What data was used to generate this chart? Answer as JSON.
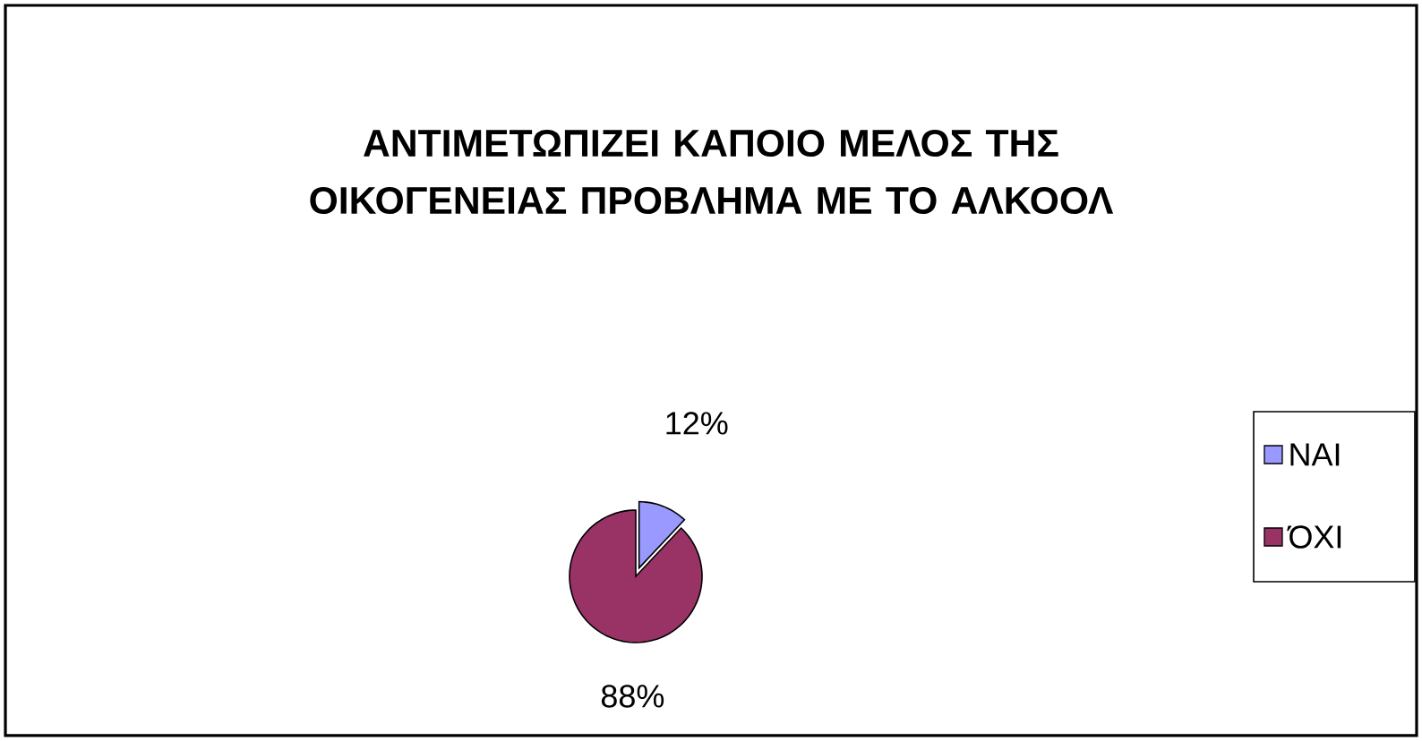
{
  "chart_data": {
    "type": "pie",
    "title": "ΑΝΤΙΜΕΤΩΠΙΖΕΙ ΚΑΠΟΙΟ ΜΕΛΟΣ ΤΗΣ ΟΙΚΟΓΕΝΕΙΑΣ ΠΡΟΒΛΗΜΑ ΜΕ ΤΟ ΑΛΚΟΟΛ",
    "categories": [
      "ΝΑΙ",
      "ΌΧΙ"
    ],
    "values": [
      12,
      88
    ],
    "colors": [
      "#9999ff",
      "#993366"
    ],
    "value_labels": [
      "12%",
      "88%"
    ],
    "legend": "right"
  }
}
